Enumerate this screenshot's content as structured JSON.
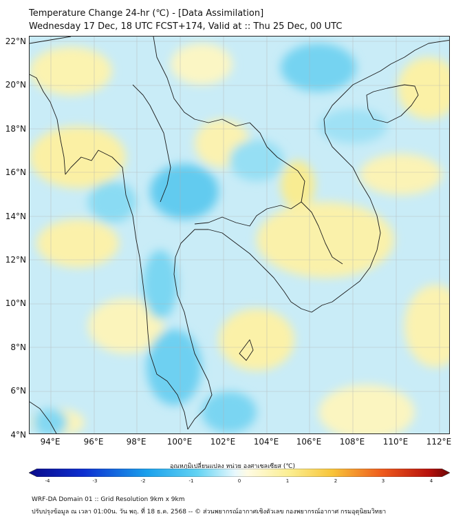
{
  "title": {
    "line1": "Temperature Change 24-hr (℃) - [Data Assimilation]",
    "line2": "Wednesday 17 Dec, 18 UTC FCST+174, Valid at :: Thu 25 Dec, 00 UTC"
  },
  "map": {
    "lat_labels": [
      "22°N",
      "20°N",
      "18°N",
      "16°N",
      "14°N",
      "12°N",
      "10°N",
      "8°N",
      "6°N",
      "4°N"
    ],
    "lon_labels": [
      "94°E",
      "96°E",
      "98°E",
      "100°E",
      "102°E",
      "104°E",
      "106°E",
      "108°E",
      "110°E",
      "112°E"
    ],
    "extent": {
      "lon_min": 93,
      "lon_max": 112.5,
      "lat_min": 4,
      "lat_max": 22.2
    },
    "background_color": "#c9ecf7",
    "warm_color": "#fdf5b8",
    "cool_color": "#58cdef",
    "coast_color": "#1a1a1a"
  },
  "colorbar": {
    "title": "อุณหภูมิเปลี่ยนแปลง หน่วย องศาเซลเซียส (℃)",
    "ticks": [
      "-4",
      "-3",
      "-2",
      "-1",
      "0",
      "1",
      "2",
      "3",
      "4"
    ],
    "min": -4,
    "max": 4
  },
  "footer": {
    "line1": "WRF-DA Domain 01 :: Grid Resolution 9km x 9km",
    "line2": "ปรับปรุงข้อมูล ณ เวลา 01:00น. วัน พฤ. ที่ 18 ธ.ค. 2568 -- © ส่วนพยากรณ์อากาศเชิงตัวเลข กองพยากรณ์อากาศ กรมอุตุนิยมวิทยา"
  }
}
